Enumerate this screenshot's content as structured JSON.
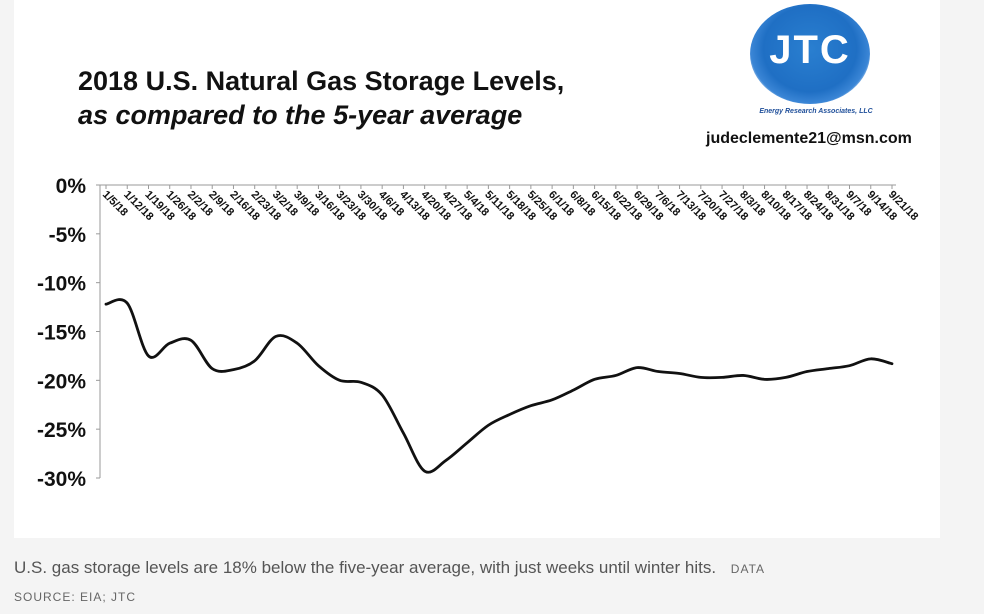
{
  "figure": {
    "title_line1": "2018 U.S. Natural Gas Storage Levels,",
    "title_line2": "as compared to the 5-year average",
    "email": "judeclemente21@msn.com",
    "logo_text": "JTC",
    "logo_tagline": "Energy Research Associates, LLC"
  },
  "caption": {
    "text": "U.S. gas storage levels are 18% below the five-year average, with just weeks until winter hits.",
    "credit": "DATA",
    "source": "SOURCE: EIA; JTC"
  },
  "colors": {
    "line": "#111111",
    "background": "#ffffff",
    "logo_blue": "#1f6fc4"
  },
  "chart_data": {
    "type": "line",
    "title": "2018 U.S. Natural Gas Storage Levels, as compared to the 5-year average",
    "xlabel": "",
    "ylabel": "",
    "ylim": [
      -30,
      0
    ],
    "yticks": [
      0,
      -5,
      -10,
      -15,
      -20,
      -25,
      -30
    ],
    "ytick_labels": [
      "0%",
      "-5%",
      "-10%",
      "-15%",
      "-20%",
      "-25%",
      "-30%"
    ],
    "grid": false,
    "categories": [
      "1/5/18",
      "1/12/18",
      "1/19/18",
      "1/26/18",
      "2/2/18",
      "2/9/18",
      "2/16/18",
      "2/23/18",
      "3/2/18",
      "3/9/18",
      "3/16/18",
      "3/23/18",
      "3/30/18",
      "4/6/18",
      "4/13/18",
      "4/20/18",
      "4/27/18",
      "5/4/18",
      "5/11/18",
      "5/18/18",
      "5/25/18",
      "6/1/18",
      "6/8/18",
      "6/15/18",
      "6/22/18",
      "6/29/18",
      "7/6/18",
      "7/13/18",
      "7/20/18",
      "7/27/18",
      "8/3/18",
      "8/10/18",
      "8/17/18",
      "8/24/18",
      "8/31/18",
      "9/7/18",
      "9/14/18",
      "9/21/18"
    ],
    "series": [
      {
        "values": [
          -12.2,
          -12.1,
          -17.5,
          -16.2,
          -15.9,
          -18.8,
          -18.9,
          -18.0,
          -15.5,
          -16.2,
          -18.5,
          -20.0,
          -20.2,
          -21.5,
          -25.4,
          -29.3,
          -28.2,
          -26.4,
          -24.6,
          -23.5,
          -22.6,
          -22.0,
          -21.0,
          -19.9,
          -19.5,
          -18.7,
          -19.1,
          -19.3,
          -19.7,
          -19.7,
          -19.5,
          -19.9,
          -19.7,
          -19.1,
          -18.8,
          -18.5,
          -17.8,
          -18.3
        ]
      }
    ]
  }
}
